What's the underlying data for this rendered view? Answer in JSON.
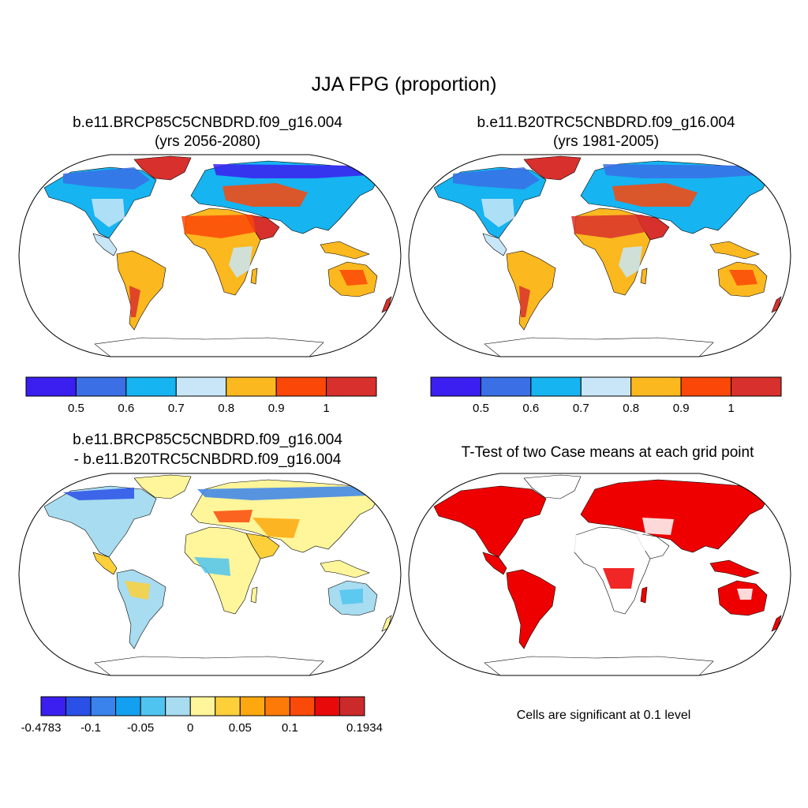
{
  "figure": {
    "title": "JJA FPG (proportion)"
  },
  "panels": [
    {
      "id": "future",
      "title_line1": "b.e11.BRCP85C5CNBDRD.f09_g16.004",
      "title_line2": "(yrs 2056-2080)",
      "colorbar": {
        "colors": [
          "#3b1ef0",
          "#3a6fe6",
          "#16b4f0",
          "#c8e6f8",
          "#fbb81f",
          "#fb4708",
          "#d8302c"
        ],
        "tick_labels": [
          "0.5",
          "0.6",
          "0.7",
          "0.8",
          "0.9",
          "1"
        ]
      }
    },
    {
      "id": "historical",
      "title_line1": "b.e11.B20TRC5CNBDRD.f09_g16.004",
      "title_line2": "(yrs 1981-2005)",
      "colorbar": {
        "colors": [
          "#3b1ef0",
          "#3a6fe6",
          "#16b4f0",
          "#c8e6f8",
          "#fbb81f",
          "#fb4708",
          "#d8302c"
        ],
        "tick_labels": [
          "0.5",
          "0.6",
          "0.7",
          "0.8",
          "0.9",
          "1"
        ]
      }
    },
    {
      "id": "difference",
      "title_line1": "b.e11.BRCP85C5CNBDRD.f09_g16.004",
      "title_line2": "- b.e11.B20TRC5CNBDRD.f09_g16.004",
      "colorbar": {
        "colors": [
          "#3b1ef0",
          "#2a50e8",
          "#3a82ec",
          "#14a0f0",
          "#50c4f0",
          "#a8dcf0",
          "#fff59a",
          "#fdd03a",
          "#fca80e",
          "#fd7a08",
          "#fa4a0a",
          "#e80a0a",
          "#cc2a2a"
        ],
        "tick_labels": [
          "-0.4783",
          "-0.1",
          "-0.05",
          "0",
          "0.05",
          "0.1",
          "0.1934"
        ]
      }
    },
    {
      "id": "ttest",
      "title_line1": "T-Test of two Case means at each grid point",
      "note": "Cells are significant at 0.1 level",
      "significant_color": "#ee0000"
    }
  ]
}
